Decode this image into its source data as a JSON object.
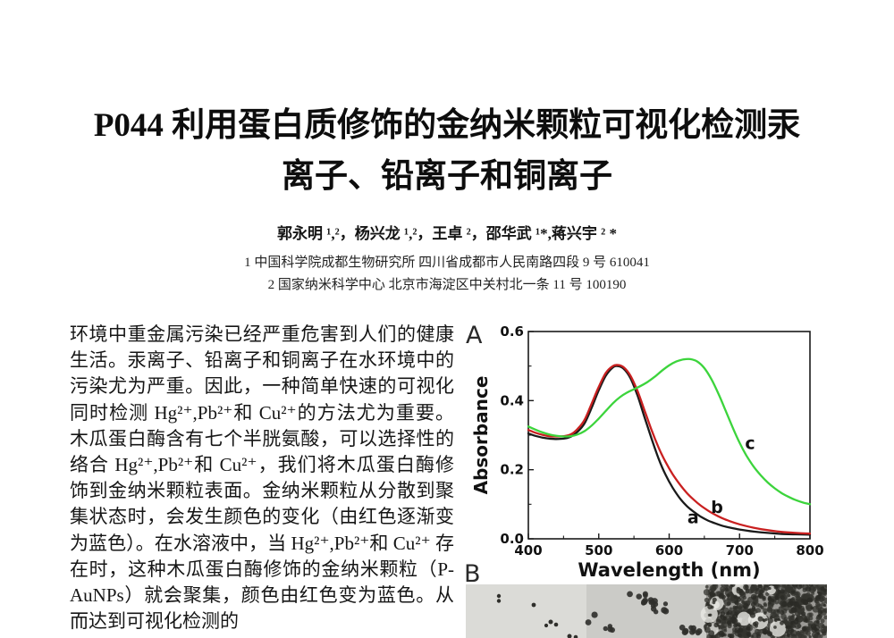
{
  "page": {
    "title_line1": "P044  利用蛋白质修饰的金纳米颗粒可视化检测汞",
    "title_line2": "离子、铅离子和铜离子",
    "authors": "郭永明 ¹,²，杨兴龙 ¹,²，王卓 ²，邵华武 ¹*,蒋兴宇 ² *",
    "affiliation1": "1  中国科学院成都生物研究所  四川省成都市人民南路四段 9 号    610041",
    "affiliation2": "2  国家纳米科学中心  北京市海淀区中关村北一条 11 号  100190",
    "abstract_text": "环境中重金属污染已经严重危害到人们的健康生活。汞离子、铅离子和铜离子在水环境中的污染尤为严重。因此，一种简单快速的可视化同时检测 Hg²⁺,Pb²⁺和 Cu²⁺的方法尤为重要。木瓜蛋白酶含有七个半胱氨酸，可以选择性的络合 Hg²⁺,Pb²⁺和 Cu²⁺，我们将木瓜蛋白酶修饰到金纳米颗粒表面。金纳米颗粒从分散到聚集状态时，会发生颜色的变化（由红色逐渐变为蓝色）。在水溶液中，当 Hg²⁺,Pb²⁺和 Cu²⁺ 存在时，这种木瓜蛋白酶修饰的金纳米颗粒（P-AuNPs）就会聚集，颜色由红色变为蓝色。从而达到可视化检测的"
  },
  "figure": {
    "panel_a_label": "A",
    "panel_b_label": "B",
    "tem_panels": [
      "sparse-dispersed-particles",
      "small-clusters",
      "dense-aggregated-particles"
    ]
  },
  "chart_data": {
    "type": "line",
    "title": "",
    "xlabel": "Wavelength (nm)",
    "ylabel": "Absorbance",
    "xlim": [
      400,
      800
    ],
    "ylim": [
      0.0,
      0.6
    ],
    "x_ticks": [
      400,
      500,
      600,
      700,
      800
    ],
    "x_minor_ticks": [
      450,
      550,
      650,
      750
    ],
    "y_ticks": [
      "0.0",
      "0.2",
      "0.4",
      "0.6"
    ],
    "y_minor_ticks": [
      0.1,
      0.3,
      0.5
    ],
    "grid": false,
    "legend": "inline curve labels",
    "frame_color": "#1a1a1a",
    "series": [
      {
        "name": "a",
        "color": "#1a1a1a",
        "points": [
          [
            400,
            0.305
          ],
          [
            410,
            0.298
          ],
          [
            420,
            0.293
          ],
          [
            430,
            0.29
          ],
          [
            440,
            0.289
          ],
          [
            450,
            0.29
          ],
          [
            460,
            0.295
          ],
          [
            470,
            0.31
          ],
          [
            480,
            0.335
          ],
          [
            490,
            0.38
          ],
          [
            500,
            0.43
          ],
          [
            510,
            0.472
          ],
          [
            520,
            0.496
          ],
          [
            527,
            0.5
          ],
          [
            535,
            0.493
          ],
          [
            545,
            0.465
          ],
          [
            555,
            0.415
          ],
          [
            565,
            0.352
          ],
          [
            575,
            0.29
          ],
          [
            585,
            0.232
          ],
          [
            595,
            0.185
          ],
          [
            605,
            0.148
          ],
          [
            615,
            0.118
          ],
          [
            625,
            0.095
          ],
          [
            635,
            0.078
          ],
          [
            645,
            0.064
          ],
          [
            655,
            0.053
          ],
          [
            665,
            0.045
          ],
          [
            675,
            0.038
          ],
          [
            685,
            0.033
          ],
          [
            700,
            0.027
          ],
          [
            720,
            0.021
          ],
          [
            740,
            0.017
          ],
          [
            760,
            0.014
          ],
          [
            780,
            0.013
          ],
          [
            800,
            0.012
          ]
        ]
      },
      {
        "name": "b",
        "color": "#c92020",
        "points": [
          [
            400,
            0.315
          ],
          [
            410,
            0.307
          ],
          [
            420,
            0.301
          ],
          [
            430,
            0.297
          ],
          [
            440,
            0.296
          ],
          [
            450,
            0.297
          ],
          [
            460,
            0.302
          ],
          [
            470,
            0.318
          ],
          [
            480,
            0.345
          ],
          [
            490,
            0.392
          ],
          [
            500,
            0.44
          ],
          [
            510,
            0.48
          ],
          [
            520,
            0.5
          ],
          [
            527,
            0.503
          ],
          [
            535,
            0.497
          ],
          [
            545,
            0.472
          ],
          [
            555,
            0.428
          ],
          [
            565,
            0.372
          ],
          [
            575,
            0.315
          ],
          [
            585,
            0.264
          ],
          [
            595,
            0.222
          ],
          [
            605,
            0.187
          ],
          [
            615,
            0.158
          ],
          [
            625,
            0.133
          ],
          [
            635,
            0.113
          ],
          [
            645,
            0.096
          ],
          [
            655,
            0.082
          ],
          [
            665,
            0.07
          ],
          [
            675,
            0.06
          ],
          [
            685,
            0.052
          ],
          [
            700,
            0.042
          ],
          [
            720,
            0.032
          ],
          [
            740,
            0.025
          ],
          [
            760,
            0.02
          ],
          [
            780,
            0.017
          ],
          [
            800,
            0.015
          ]
        ]
      },
      {
        "name": "c",
        "color": "#3cd43c",
        "points": [
          [
            400,
            0.325
          ],
          [
            410,
            0.316
          ],
          [
            420,
            0.308
          ],
          [
            430,
            0.302
          ],
          [
            440,
            0.298
          ],
          [
            450,
            0.296
          ],
          [
            460,
            0.297
          ],
          [
            470,
            0.302
          ],
          [
            480,
            0.312
          ],
          [
            490,
            0.328
          ],
          [
            500,
            0.348
          ],
          [
            510,
            0.37
          ],
          [
            520,
            0.392
          ],
          [
            530,
            0.41
          ],
          [
            540,
            0.423
          ],
          [
            550,
            0.433
          ],
          [
            560,
            0.443
          ],
          [
            570,
            0.455
          ],
          [
            580,
            0.47
          ],
          [
            590,
            0.487
          ],
          [
            600,
            0.502
          ],
          [
            610,
            0.513
          ],
          [
            620,
            0.519
          ],
          [
            630,
            0.52
          ],
          [
            640,
            0.513
          ],
          [
            650,
            0.494
          ],
          [
            660,
            0.462
          ],
          [
            670,
            0.42
          ],
          [
            680,
            0.372
          ],
          [
            690,
            0.323
          ],
          [
            700,
            0.278
          ],
          [
            710,
            0.24
          ],
          [
            720,
            0.209
          ],
          [
            730,
            0.184
          ],
          [
            740,
            0.163
          ],
          [
            750,
            0.146
          ],
          [
            760,
            0.132
          ],
          [
            770,
            0.121
          ],
          [
            780,
            0.112
          ],
          [
            790,
            0.105
          ],
          [
            800,
            0.1
          ]
        ]
      }
    ],
    "annotations": [
      {
        "text": "a",
        "x": 634,
        "y": 0.045
      },
      {
        "text": "b",
        "x": 668,
        "y": 0.075
      },
      {
        "text": "c",
        "x": 715,
        "y": 0.26
      }
    ]
  }
}
